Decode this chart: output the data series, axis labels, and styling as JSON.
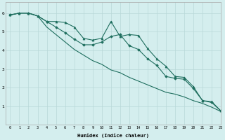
{
  "xlabel": "Humidex (Indice chaleur)",
  "background_color": "#d4eeee",
  "grid_color": "#b8d8d8",
  "line_color": "#1e6e5e",
  "xlim": [
    -0.5,
    23
  ],
  "ylim": [
    0,
    6.6
  ],
  "yticks": [
    1,
    2,
    3,
    4,
    5,
    6
  ],
  "xticks": [
    0,
    1,
    2,
    3,
    4,
    5,
    6,
    7,
    8,
    9,
    10,
    11,
    12,
    13,
    14,
    15,
    16,
    17,
    18,
    19,
    20,
    21,
    22,
    23
  ],
  "series1_x": [
    0,
    1,
    2,
    3,
    4,
    5,
    6,
    7,
    8,
    9,
    10,
    11,
    12,
    13,
    14,
    15,
    16,
    17,
    18,
    19,
    20,
    21,
    22,
    23
  ],
  "series1_y": [
    5.9,
    6.0,
    6.0,
    5.85,
    5.55,
    5.55,
    5.5,
    5.25,
    4.65,
    4.55,
    4.65,
    5.55,
    4.75,
    4.85,
    4.8,
    4.1,
    3.55,
    3.15,
    2.6,
    2.55,
    2.05,
    1.3,
    1.25,
    0.75
  ],
  "series2_x": [
    0,
    1,
    2,
    3,
    4,
    5,
    6,
    7,
    8,
    9,
    10,
    11,
    12,
    13,
    14,
    15,
    16,
    17,
    18,
    19,
    20,
    21,
    22,
    23
  ],
  "series2_y": [
    5.9,
    6.0,
    6.0,
    5.85,
    5.55,
    5.25,
    4.95,
    4.6,
    4.3,
    4.3,
    4.45,
    4.75,
    4.85,
    4.25,
    4.05,
    3.55,
    3.2,
    2.6,
    2.5,
    2.45,
    1.95,
    1.3,
    1.2,
    0.75
  ],
  "series3_x": [
    0,
    1,
    2,
    3,
    4,
    5,
    6,
    7,
    8,
    9,
    10,
    11,
    12,
    13,
    14,
    15,
    16,
    17,
    18,
    19,
    20,
    21,
    22,
    23
  ],
  "series3_y": [
    5.9,
    6.0,
    6.0,
    5.85,
    5.25,
    4.85,
    4.45,
    4.05,
    3.75,
    3.45,
    3.25,
    2.95,
    2.8,
    2.55,
    2.35,
    2.15,
    1.95,
    1.75,
    1.65,
    1.5,
    1.3,
    1.15,
    0.95,
    0.72
  ]
}
